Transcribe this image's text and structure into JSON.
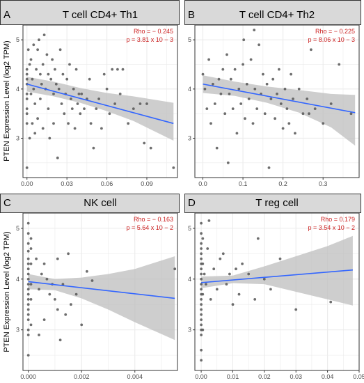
{
  "figure": {
    "ylabel": "PTEN Expression Level (log2 TPM)",
    "colors": {
      "strip": "#d9d9d9",
      "frame": "#333333",
      "grid": "#ebebeb",
      "point": "#555555",
      "line": "#3366ff",
      "band": "#bdbdbd",
      "stat": "#cc2222"
    }
  },
  "chart_data": [
    {
      "type": "scatter",
      "panel": "A",
      "title": "T cell CD4+ Th1",
      "rho": "Rho = − 0.245",
      "p": "p = 3.81 x 10 − 3",
      "xlim": [
        -0.003,
        0.113
      ],
      "ylim": [
        2.2,
        5.3
      ],
      "xticks": [
        0,
        0.03,
        0.06,
        0.09
      ],
      "xtick_labels": [
        "0.00",
        "0.03",
        "0.06",
        "0.09"
      ],
      "yticks": [
        3,
        4,
        5
      ],
      "ytick_labels": [
        "3",
        "4",
        "5"
      ],
      "fit": {
        "x": [
          0,
          0.11
        ],
        "y": [
          4.1,
          3.3
        ]
      },
      "band": {
        "x": [
          0,
          0.02,
          0.04,
          0.06,
          0.08,
          0.11
        ],
        "lower": [
          3.95,
          3.85,
          3.72,
          3.55,
          3.35,
          2.95
        ],
        "upper": [
          4.25,
          4.15,
          4.02,
          3.92,
          3.85,
          3.72
        ]
      },
      "points": [
        [
          0,
          4.4
        ],
        [
          0,
          4.3
        ],
        [
          0,
          4.2
        ],
        [
          0,
          4.1
        ],
        [
          0,
          3.9
        ],
        [
          0,
          3.8
        ],
        [
          0,
          3.6
        ],
        [
          0,
          3.5
        ],
        [
          0,
          3.3
        ],
        [
          0,
          2.4
        ],
        [
          0.001,
          4.8
        ],
        [
          0.002,
          4.5
        ],
        [
          0.002,
          3.0
        ],
        [
          0.003,
          4.6
        ],
        [
          0.003,
          3.9
        ],
        [
          0.004,
          4.2
        ],
        [
          0.004,
          3.3
        ],
        [
          0.005,
          4.9
        ],
        [
          0.005,
          4.0
        ],
        [
          0.006,
          3.7
        ],
        [
          0.006,
          3.1
        ],
        [
          0.007,
          4.4
        ],
        [
          0.008,
          4.8
        ],
        [
          0.008,
          3.4
        ],
        [
          0.009,
          5.0
        ],
        [
          0.01,
          4.3
        ],
        [
          0.01,
          3.8
        ],
        [
          0.011,
          4.1
        ],
        [
          0.012,
          4.5
        ],
        [
          0.012,
          3.2
        ],
        [
          0.013,
          5.1
        ],
        [
          0.014,
          4.0
        ],
        [
          0.015,
          4.7
        ],
        [
          0.016,
          3.6
        ],
        [
          0.016,
          4.3
        ],
        [
          0.017,
          3.0
        ],
        [
          0.018,
          4.2
        ],
        [
          0.019,
          4.6
        ],
        [
          0.02,
          3.9
        ],
        [
          0.02,
          3.3
        ],
        [
          0.021,
          4.4
        ],
        [
          0.022,
          4.1
        ],
        [
          0.023,
          2.6
        ],
        [
          0.024,
          4.0
        ],
        [
          0.025,
          4.8
        ],
        [
          0.026,
          3.7
        ],
        [
          0.027,
          4.3
        ],
        [
          0.028,
          3.5
        ],
        [
          0.029,
          3.9
        ],
        [
          0.03,
          4.2
        ],
        [
          0.031,
          3.3
        ],
        [
          0.032,
          4.5
        ],
        [
          0.033,
          3.8
        ],
        [
          0.034,
          3.6
        ],
        [
          0.035,
          4.0
        ],
        [
          0.036,
          3.2
        ],
        [
          0.037,
          4.4
        ],
        [
          0.038,
          3.7
        ],
        [
          0.039,
          3.9
        ],
        [
          0.04,
          3.5
        ],
        [
          0.041,
          3.9
        ],
        [
          0.043,
          3.6
        ],
        [
          0.045,
          3.8
        ],
        [
          0.047,
          4.2
        ],
        [
          0.048,
          3.3
        ],
        [
          0.05,
          2.8
        ],
        [
          0.052,
          3.6
        ],
        [
          0.054,
          3.8
        ],
        [
          0.056,
          3.2
        ],
        [
          0.058,
          4.3
        ],
        [
          0.06,
          4.0
        ],
        [
          0.062,
          3.5
        ],
        [
          0.064,
          4.4
        ],
        [
          0.066,
          3.7
        ],
        [
          0.068,
          4.4
        ],
        [
          0.07,
          3.9
        ],
        [
          0.072,
          4.4
        ],
        [
          0.076,
          3.3
        ],
        [
          0.08,
          3.6
        ],
        [
          0.085,
          3.7
        ],
        [
          0.088,
          2.9
        ],
        [
          0.09,
          3.7
        ],
        [
          0.093,
          2.8
        ],
        [
          0.11,
          2.4
        ]
      ]
    },
    {
      "type": "scatter",
      "panel": "B",
      "title": "T cell CD4+ Th2",
      "rho": "Rho = − 0.225",
      "p": "p = 8.06 x 10 − 3",
      "xlim": [
        -0.02,
        0.39
      ],
      "ylim": [
        2.2,
        5.3
      ],
      "xticks": [
        0,
        0.1,
        0.2,
        0.3
      ],
      "xtick_labels": [
        "0.0",
        "0.1",
        "0.2",
        "0.3"
      ],
      "yticks": [
        3,
        4,
        5
      ],
      "ytick_labels": [
        "3",
        "4",
        "5"
      ],
      "fit": {
        "x": [
          0,
          0.38
        ],
        "y": [
          4.1,
          3.52
        ]
      },
      "band": {
        "x": [
          0,
          0.08,
          0.16,
          0.24,
          0.32,
          0.38
        ],
        "lower": [
          3.92,
          3.86,
          3.72,
          3.52,
          3.22,
          2.85
        ],
        "upper": [
          4.28,
          4.15,
          4.05,
          3.98,
          3.9,
          3.88
        ]
      },
      "points": [
        [
          0,
          4.3
        ],
        [
          0.005,
          4.0
        ],
        [
          0.01,
          3.6
        ],
        [
          0.015,
          4.6
        ],
        [
          0.02,
          3.3
        ],
        [
          0.025,
          4.1
        ],
        [
          0.03,
          3.7
        ],
        [
          0.035,
          2.8
        ],
        [
          0.04,
          4.2
        ],
        [
          0.045,
          3.9
        ],
        [
          0.05,
          4.4
        ],
        [
          0.055,
          3.5
        ],
        [
          0.06,
          4.7
        ],
        [
          0.063,
          2.5
        ],
        [
          0.066,
          3.9
        ],
        [
          0.07,
          4.2
        ],
        [
          0.075,
          3.6
        ],
        [
          0.08,
          4.4
        ],
        [
          0.085,
          3.1
        ],
        [
          0.09,
          4.0
        ],
        [
          0.095,
          3.7
        ],
        [
          0.1,
          4.5
        ],
        [
          0.102,
          5.0
        ],
        [
          0.105,
          3.4
        ],
        [
          0.11,
          4.1
        ],
        [
          0.115,
          3.8
        ],
        [
          0.12,
          4.6
        ],
        [
          0.125,
          3.3
        ],
        [
          0.128,
          5.2
        ],
        [
          0.13,
          4.0
        ],
        [
          0.135,
          3.6
        ],
        [
          0.14,
          4.9
        ],
        [
          0.145,
          3.9
        ],
        [
          0.15,
          4.3
        ],
        [
          0.155,
          3.5
        ],
        [
          0.16,
          4.1
        ],
        [
          0.165,
          2.4
        ],
        [
          0.17,
          3.8
        ],
        [
          0.175,
          4.2
        ],
        [
          0.18,
          3.4
        ],
        [
          0.185,
          3.9
        ],
        [
          0.19,
          4.4
        ],
        [
          0.195,
          3.7
        ],
        [
          0.2,
          3.2
        ],
        [
          0.205,
          4.0
        ],
        [
          0.21,
          3.6
        ],
        [
          0.215,
          3.3
        ],
        [
          0.22,
          4.3
        ],
        [
          0.225,
          3.8
        ],
        [
          0.23,
          3.1
        ],
        [
          0.24,
          4.0
        ],
        [
          0.25,
          3.5
        ],
        [
          0.26,
          3.8
        ],
        [
          0.265,
          3.5
        ],
        [
          0.27,
          4.8
        ],
        [
          0.28,
          3.6
        ],
        [
          0.3,
          3.3
        ],
        [
          0.32,
          3.7
        ],
        [
          0.34,
          4.5
        ],
        [
          0.37,
          3.5
        ]
      ]
    },
    {
      "type": "scatter",
      "panel": "C",
      "title": "NK cell",
      "rho": "Rho = − 0.163",
      "p": "p = 5.64 x 10 − 2",
      "xlim": [
        -0.0002,
        0.0056
      ],
      "ylim": [
        2.2,
        5.3
      ],
      "xticks": [
        0,
        0.002,
        0.004
      ],
      "xtick_labels": [
        "0.000",
        "0.002",
        "0.004"
      ],
      "yticks": [
        3,
        4,
        5
      ],
      "ytick_labels": [
        "3",
        "4",
        "5"
      ],
      "fit": {
        "x": [
          0,
          0.0055
        ],
        "y": [
          3.95,
          3.62
        ]
      },
      "band": {
        "x": [
          0,
          0.001,
          0.002,
          0.003,
          0.004,
          0.0055
        ],
        "lower": [
          3.8,
          3.78,
          3.62,
          3.4,
          3.15,
          2.8
        ],
        "upper": [
          4.1,
          4.0,
          4.03,
          4.1,
          4.2,
          4.45
        ]
      },
      "points": [
        [
          0,
          5.1
        ],
        [
          0,
          4.9
        ],
        [
          0,
          4.7
        ],
        [
          0,
          4.55
        ],
        [
          0,
          4.4
        ],
        [
          0,
          4.3
        ],
        [
          0,
          4.2
        ],
        [
          0,
          4.1
        ],
        [
          0,
          4.0
        ],
        [
          0,
          3.9
        ],
        [
          0,
          3.8
        ],
        [
          0,
          3.7
        ],
        [
          0,
          3.6
        ],
        [
          0,
          3.5
        ],
        [
          0,
          3.4
        ],
        [
          0,
          3.3
        ],
        [
          0,
          3.2
        ],
        [
          0,
          3.0
        ],
        [
          0,
          2.9
        ],
        [
          0,
          2.5
        ],
        [
          0.0001,
          4.8
        ],
        [
          0.0001,
          4.6
        ],
        [
          0.0001,
          4.3
        ],
        [
          0.0001,
          3.9
        ],
        [
          0.0001,
          3.6
        ],
        [
          0.0001,
          3.1
        ],
        [
          0.0003,
          4.4
        ],
        [
          0.0004,
          3.8
        ],
        [
          0.0004,
          2.9
        ],
        [
          0.0005,
          4.1
        ],
        [
          0.0006,
          4.3
        ],
        [
          0.0006,
          3.2
        ],
        [
          0.0007,
          4.0
        ],
        [
          0.0008,
          3.7
        ],
        [
          0.0009,
          3.9
        ],
        [
          0.001,
          3.6
        ],
        [
          0.0011,
          4.4
        ],
        [
          0.0011,
          3.4
        ],
        [
          0.0012,
          2.8
        ],
        [
          0.0013,
          3.9
        ],
        [
          0.0014,
          3.3
        ],
        [
          0.0015,
          4.5
        ],
        [
          0.0016,
          3.5
        ],
        [
          0.0018,
          3.7
        ],
        [
          0.002,
          3.1
        ],
        [
          0.0022,
          4.15
        ],
        [
          0.0024,
          3.97
        ],
        [
          0.0055,
          4.2
        ]
      ]
    },
    {
      "type": "scatter",
      "panel": "D",
      "title": "T reg cell",
      "rho": "Rho = 0.179",
      "p": "p = 3.54 x 10 − 2",
      "xlim": [
        -0.002,
        0.05
      ],
      "ylim": [
        2.2,
        5.3
      ],
      "xticks": [
        0,
        0.01,
        0.02,
        0.03,
        0.04,
        0.05
      ],
      "xtick_labels": [
        "0.00",
        "0.01",
        "0.02",
        "0.03",
        "0.04",
        "0.05"
      ],
      "yticks": [
        3,
        4,
        5
      ],
      "ytick_labels": [
        "3",
        "4",
        "5"
      ],
      "fit": {
        "x": [
          0,
          0.048
        ],
        "y": [
          3.93,
          4.18
        ]
      },
      "band": {
        "x": [
          0,
          0.01,
          0.02,
          0.03,
          0.04,
          0.048
        ],
        "lower": [
          3.82,
          3.92,
          3.9,
          3.75,
          3.6,
          3.48
        ],
        "upper": [
          4.05,
          4.07,
          4.25,
          4.45,
          4.65,
          4.85
        ]
      },
      "points": [
        [
          0,
          5.1
        ],
        [
          0,
          4.9
        ],
        [
          0,
          4.7
        ],
        [
          0,
          4.6
        ],
        [
          0,
          4.5
        ],
        [
          0,
          4.4
        ],
        [
          0,
          4.3
        ],
        [
          0,
          4.2
        ],
        [
          0,
          4.1
        ],
        [
          0,
          4.0
        ],
        [
          0,
          3.9
        ],
        [
          0,
          3.8
        ],
        [
          0,
          3.7
        ],
        [
          0,
          3.6
        ],
        [
          0,
          3.5
        ],
        [
          0,
          3.4
        ],
        [
          0,
          3.3
        ],
        [
          0,
          3.2
        ],
        [
          0,
          3.1
        ],
        [
          0,
          3.0
        ],
        [
          0,
          2.9
        ],
        [
          0,
          2.6
        ],
        [
          0,
          2.4
        ],
        [
          0.0005,
          4.8
        ],
        [
          0.0005,
          4.3
        ],
        [
          0.0005,
          3.7
        ],
        [
          0.0005,
          3.0
        ],
        [
          0.001,
          4.1
        ],
        [
          0.0015,
          3.9
        ],
        [
          0.002,
          4.6
        ],
        [
          0.0025,
          5.15
        ],
        [
          0.003,
          3.6
        ],
        [
          0.004,
          4.2
        ],
        [
          0.005,
          3.8
        ],
        [
          0.006,
          4.4
        ],
        [
          0.007,
          4.5
        ],
        [
          0.008,
          3.9
        ],
        [
          0.009,
          4.1
        ],
        [
          0.01,
          3.5
        ],
        [
          0.011,
          4.2
        ],
        [
          0.012,
          3.7
        ],
        [
          0.013,
          4.3
        ],
        [
          0.015,
          4.1
        ],
        [
          0.017,
          3.6
        ],
        [
          0.018,
          4.8
        ],
        [
          0.02,
          4.0
        ],
        [
          0.022,
          3.8
        ],
        [
          0.025,
          4.4
        ],
        [
          0.03,
          3.4
        ],
        [
          0.041,
          3.55
        ]
      ]
    }
  ]
}
